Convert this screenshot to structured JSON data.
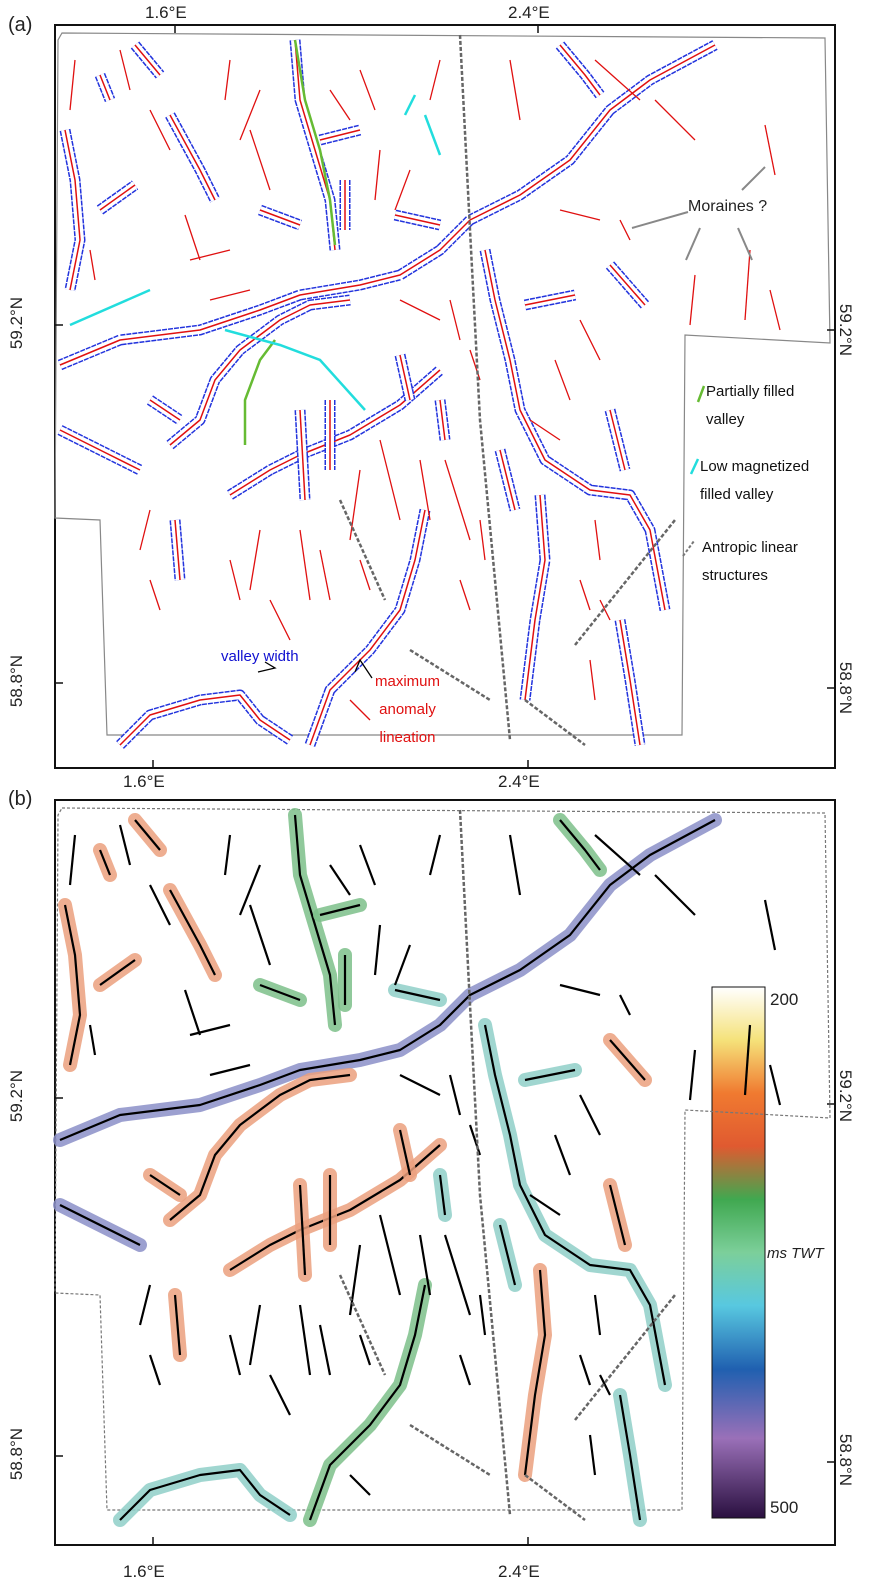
{
  "panel_a": {
    "label": "(a)",
    "top_ticks": [
      "1.6°E",
      "2.4°E"
    ],
    "bottom_ticks": [
      "1.6°E",
      "2.4°E"
    ],
    "left_ticks": [
      "59.2°N",
      "58.8°N"
    ],
    "right_ticks": [
      "59.2°N",
      "58.8°N"
    ],
    "annotations": {
      "moraines": "Moraines ?",
      "partially_filled": "Partially filled valley",
      "low_magnetized": "Low magnetized filled valley",
      "antropic": "Antropic linear structures",
      "valley_width": "valley width",
      "max_anomaly": "maximum anomaly lineation"
    }
  },
  "panel_b": {
    "label": "(b)",
    "bottom_ticks": [
      "1.6°E",
      "2.4°E"
    ],
    "left_ticks": [
      "59.2°N",
      "58.8°N"
    ],
    "right_ticks": [
      "59.2°N",
      "58.8°N"
    ],
    "colorbar": {
      "top": "200",
      "bottom": "500",
      "unit": "ms TWT"
    }
  }
}
